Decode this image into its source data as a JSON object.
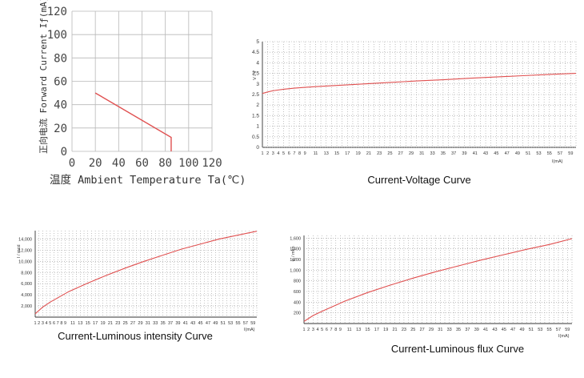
{
  "chart_data": [
    {
      "type": "line",
      "title": "",
      "xlabel": "温度 Ambient Temperature Ta(℃)",
      "ylabel": "正向电流 Forward Current Iƒ(mA)",
      "x_ticks": [
        "0",
        "20",
        "40",
        "60",
        "80",
        "100",
        "120"
      ],
      "y_ticks": [
        "0",
        "20",
        "40",
        "60",
        "80",
        "100",
        "120"
      ],
      "xlim": [
        0,
        120
      ],
      "ylim": [
        0,
        120
      ],
      "grid": true,
      "color": "#e05050",
      "series": [
        {
          "x": [
            20,
            85,
            85
          ],
          "y": [
            50,
            12,
            0
          ]
        }
      ]
    },
    {
      "type": "line",
      "title": "Current-Voltage Curve",
      "xlabel": "I(mA)",
      "ylabel": "V / V",
      "x_ticks": [
        "1",
        "2",
        "3",
        "4",
        "5",
        "6",
        "7",
        "8",
        "9",
        "11",
        "13",
        "15",
        "17",
        "19",
        "21",
        "23",
        "25",
        "27",
        "29",
        "31",
        "33",
        "35",
        "37",
        "39",
        "41",
        "43",
        "45",
        "47",
        "49",
        "51",
        "53",
        "55",
        "57",
        "59"
      ],
      "y_ticks": [
        "0",
        "0.5",
        "1",
        "1.5",
        "2",
        "2.5",
        "3",
        "3.5",
        "4",
        "4.5",
        "5"
      ],
      "xlim": [
        1,
        60
      ],
      "ylim": [
        0,
        5
      ],
      "grid": true,
      "color": "#e05050",
      "series": [
        {
          "x": [
            1,
            2,
            3,
            5,
            7,
            9,
            11,
            15,
            20,
            25,
            30,
            35,
            40,
            45,
            50,
            55,
            60
          ],
          "y": [
            2.55,
            2.62,
            2.68,
            2.75,
            2.8,
            2.84,
            2.87,
            2.93,
            3.0,
            3.07,
            3.14,
            3.2,
            3.27,
            3.33,
            3.39,
            3.45,
            3.5
          ]
        }
      ]
    },
    {
      "type": "line",
      "title": "Current-Luminous intensity Curve",
      "xlabel": "I(mA)",
      "ylabel": "I / mcd",
      "x_ticks": [
        "1",
        "2",
        "3",
        "4",
        "5",
        "6",
        "7",
        "8",
        "9",
        "11",
        "13",
        "15",
        "17",
        "19",
        "21",
        "23",
        "25",
        "27",
        "29",
        "31",
        "33",
        "35",
        "37",
        "39",
        "41",
        "43",
        "45",
        "47",
        "49",
        "51",
        "53",
        "55",
        "57",
        "59"
      ],
      "y_ticks": [
        "2,000",
        "4,000",
        "6,000",
        "8,000",
        "10,000",
        "12,000",
        "14,000"
      ],
      "xlim": [
        1,
        60
      ],
      "ylim": [
        0,
        15500
      ],
      "grid": true,
      "color": "#e05050",
      "series": [
        {
          "x": [
            1,
            3,
            5,
            10,
            15,
            20,
            25,
            30,
            35,
            40,
            45,
            50,
            55,
            60
          ],
          "y": [
            600,
            1800,
            2700,
            4600,
            6100,
            7500,
            8800,
            10000,
            11100,
            12200,
            13100,
            14000,
            14700,
            15400
          ]
        }
      ]
    },
    {
      "type": "line",
      "title": "Current-Luminous flux Curve",
      "xlabel": "I(mA)",
      "ylabel": "φ / mlm",
      "x_ticks": [
        "1",
        "2",
        "3",
        "4",
        "5",
        "6",
        "7",
        "8",
        "9",
        "11",
        "13",
        "15",
        "17",
        "19",
        "21",
        "23",
        "25",
        "27",
        "29",
        "31",
        "33",
        "35",
        "37",
        "39",
        "41",
        "43",
        "45",
        "47",
        "49",
        "51",
        "53",
        "55",
        "57",
        "59"
      ],
      "y_ticks": [
        "200",
        "400",
        "600",
        "800",
        "1,000",
        "1,200",
        "1,400",
        "1,600"
      ],
      "xlim": [
        1,
        60
      ],
      "ylim": [
        0,
        1650
      ],
      "grid": true,
      "color": "#e05050",
      "series": [
        {
          "x": [
            1,
            3,
            5,
            10,
            15,
            20,
            25,
            30,
            35,
            40,
            45,
            50,
            55,
            60
          ],
          "y": [
            40,
            150,
            230,
            420,
            580,
            720,
            850,
            970,
            1080,
            1190,
            1290,
            1390,
            1480,
            1590
          ]
        }
      ]
    }
  ]
}
